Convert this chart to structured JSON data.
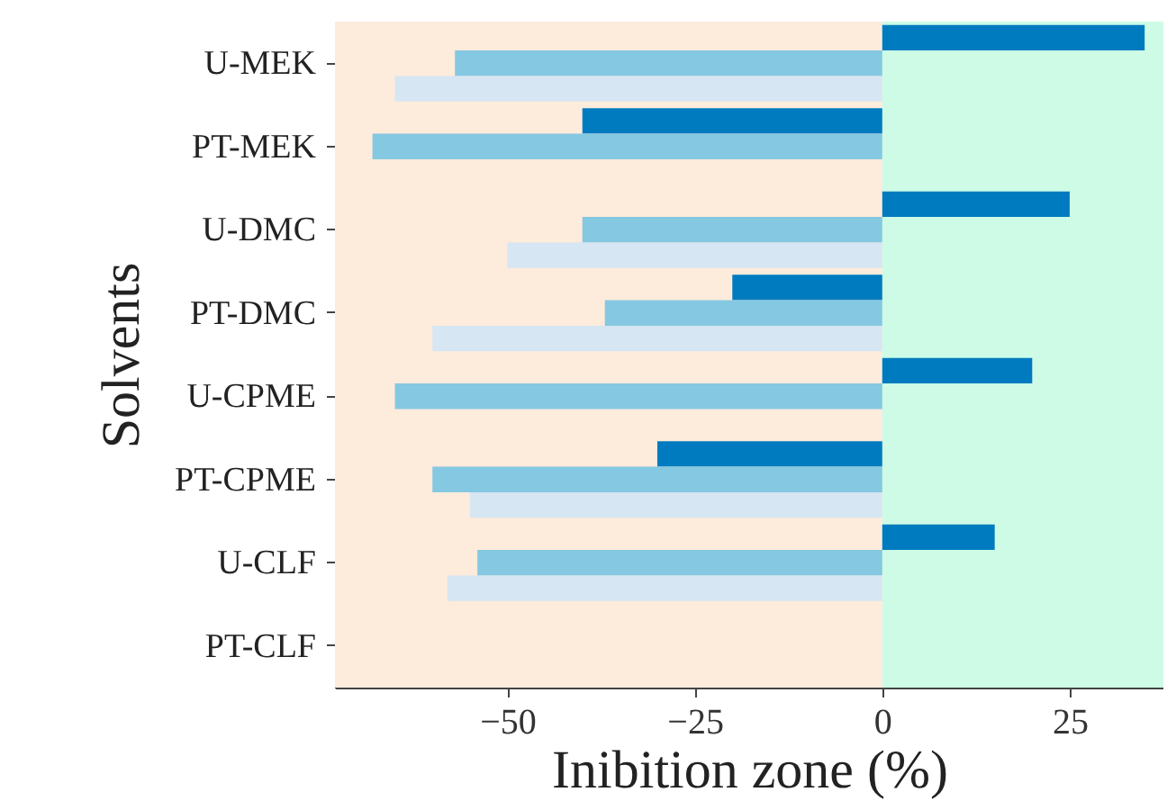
{
  "chart_data": {
    "type": "bar",
    "orientation": "horizontal",
    "xlabel": "Inibition zone (%)",
    "ylabel": "Solvents",
    "categories": [
      "U-MEK",
      "PT-MEK",
      "U-DMC",
      "PT-DMC",
      "U-CPME",
      "PT-CPME",
      "U-CLF",
      "PT-CLF"
    ],
    "series": [
      {
        "color": "#007bbf",
        "values": [
          35,
          -40,
          25,
          -20,
          20,
          -30,
          15,
          null
        ]
      },
      {
        "color": "#85c8e1",
        "values": [
          -57,
          -68,
          -40,
          -37,
          -65,
          -60,
          -54,
          null
        ]
      },
      {
        "color": "#d6e6f2",
        "values": [
          -65,
          null,
          -50,
          -60,
          null,
          -55,
          -58,
          null
        ]
      }
    ],
    "xlim": [
      -73,
      37.5
    ],
    "xticks": [
      -50,
      -25,
      0,
      25
    ],
    "grid": false,
    "bands": [
      {
        "axis": "x",
        "from": -73,
        "to": 0,
        "color": "#fdebdc"
      },
      {
        "axis": "x",
        "from": 0,
        "to": 37.5,
        "color": "#cdfbe6"
      }
    ]
  }
}
